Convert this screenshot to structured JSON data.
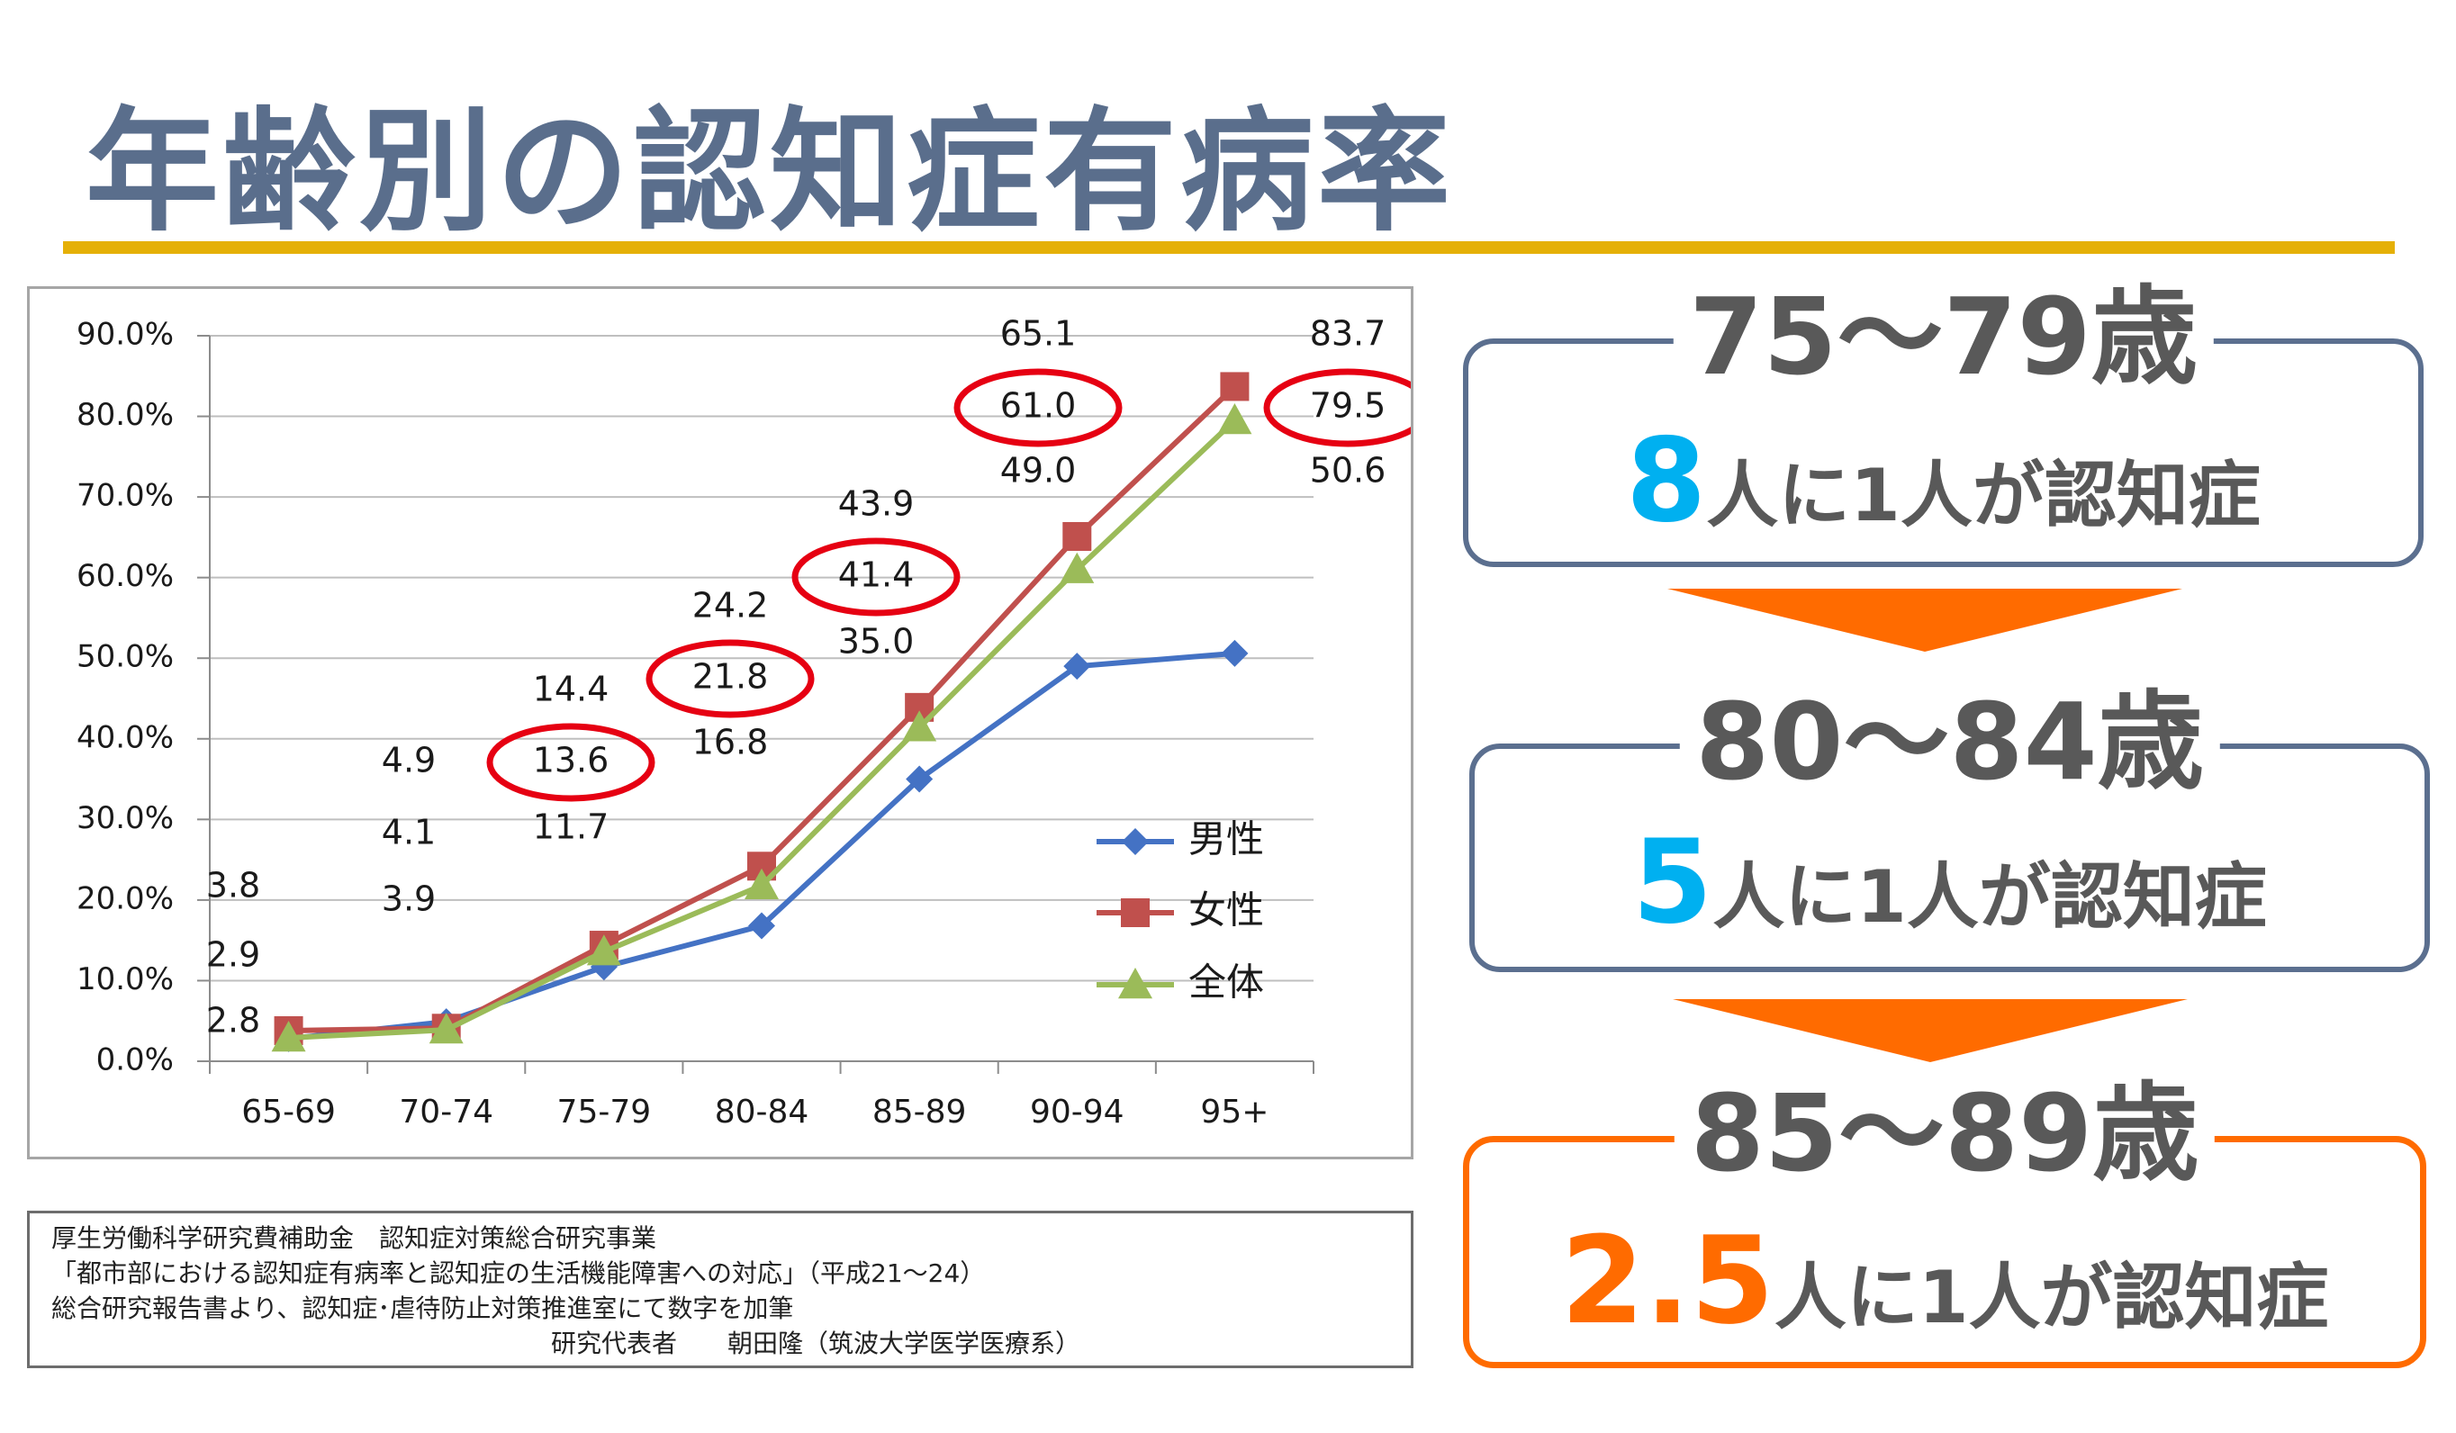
{
  "title": "年齢別の認知症有病率",
  "chart_data": {
    "type": "line",
    "categories": [
      "65-69",
      "70-74",
      "75-79",
      "80-84",
      "85-89",
      "90-94",
      "95+"
    ],
    "y_ticks": [
      "0.0%",
      "10.0%",
      "20.0%",
      "30.0%",
      "40.0%",
      "50.0%",
      "60.0%",
      "70.0%",
      "80.0%",
      "90.0%"
    ],
    "ylim": [
      0,
      90
    ],
    "series": [
      {
        "name": "男性",
        "color": "#4472c4",
        "marker": "diamond",
        "values": [
          2.8,
          4.9,
          11.7,
          16.8,
          35.0,
          49.0,
          50.6
        ]
      },
      {
        "name": "女性",
        "color": "#c0504d",
        "marker": "square",
        "values": [
          3.8,
          4.1,
          14.4,
          24.2,
          43.9,
          65.1,
          83.7
        ]
      },
      {
        "name": "全体",
        "color": "#9bbb59",
        "marker": "triangle",
        "values": [
          2.9,
          3.9,
          13.6,
          21.8,
          41.4,
          61.0,
          79.5
        ]
      }
    ],
    "data_labels": [
      [
        "3.8",
        "2.9",
        "2.8"
      ],
      [
        "4.9",
        "4.1",
        "3.9"
      ],
      [
        "14.4",
        "13.6",
        "11.7"
      ],
      [
        "24.2",
        "21.8",
        "16.8"
      ],
      [
        "43.9",
        "41.4",
        "35.0"
      ],
      [
        "65.1",
        "61.0",
        "49.0"
      ],
      [
        "83.7",
        "79.5",
        "50.6"
      ]
    ],
    "highlighted_labels": [
      "13.6",
      "21.8",
      "41.4",
      "61.0",
      "79.5"
    ],
    "highlight_color": "#e60012",
    "grid": true,
    "legend": "right"
  },
  "source": [
    "厚生労働科学研究費補助金　認知症対策総合研究事業",
    "「都市部における認知症有病率と認知症の生活機能障害への対応」（平成21～24）",
    "総合研究報告書より、認知症･虐待防止対策推進室にて数字を加筆",
    "研究代表者　　朝田隆（筑波大学医学医療系）"
  ],
  "callouts": [
    {
      "age": "75～79歳",
      "num": "8",
      "rest": "人に1人が認知症"
    },
    {
      "age": "80～84歳",
      "num": "5",
      "rest": "人に1人が認知症"
    },
    {
      "age": "85～89歳",
      "num": "2.5",
      "rest": "人に1人が認知症"
    }
  ]
}
